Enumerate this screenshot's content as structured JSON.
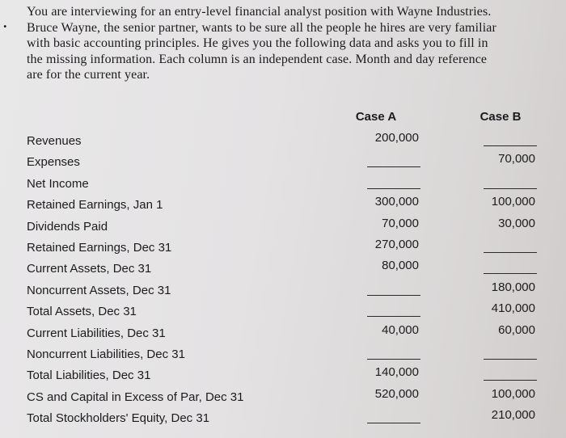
{
  "problem": {
    "marker": ".",
    "lines": [
      "You are interviewing for an entry-level financial analyst position with Wayne Industries.",
      "Bruce Wayne, the senior partner, wants to be sure all the people he hires are very familiar",
      "with basic accounting principles. He gives you the following data and asks you to fill in",
      "the missing information. Each column is an independent case. Month and day reference",
      "are for the current year."
    ]
  },
  "table": {
    "headers": [
      "Case A",
      "Case B"
    ],
    "rows": [
      {
        "label": "Revenues",
        "values": [
          "200,000",
          null
        ]
      },
      {
        "label": "Expenses",
        "values": [
          null,
          "70,000"
        ]
      },
      {
        "label": "Net Income",
        "values": [
          null,
          null
        ]
      },
      {
        "label": "Retained Earnings, Jan 1",
        "values": [
          "300,000",
          "100,000"
        ]
      },
      {
        "label": "Dividends Paid",
        "values": [
          "70,000",
          "30,000"
        ]
      },
      {
        "label": "Retained Earnings, Dec 31",
        "values": [
          "270,000",
          null
        ]
      },
      {
        "label": "Current Assets, Dec 31",
        "values": [
          "80,000",
          null
        ]
      },
      {
        "label": "Noncurrent Assets, Dec 31",
        "values": [
          null,
          "180,000"
        ]
      },
      {
        "label": "Total Assets, Dec 31",
        "values": [
          null,
          "410,000"
        ]
      },
      {
        "label": "Current Liabilities, Dec 31",
        "values": [
          "40,000",
          "60,000"
        ]
      },
      {
        "label": "Noncurrent Liabilities, Dec 31",
        "values": [
          null,
          null
        ]
      },
      {
        "label": "Total Liabilities, Dec 31",
        "values": [
          "140,000",
          null
        ]
      },
      {
        "label": "CS and Capital in Excess of Par, Dec 31",
        "values": [
          "520,000",
          "100,000"
        ]
      },
      {
        "label": "Total Stockholders' Equity, Dec 31",
        "values": [
          null,
          "210,000"
        ]
      }
    ]
  }
}
